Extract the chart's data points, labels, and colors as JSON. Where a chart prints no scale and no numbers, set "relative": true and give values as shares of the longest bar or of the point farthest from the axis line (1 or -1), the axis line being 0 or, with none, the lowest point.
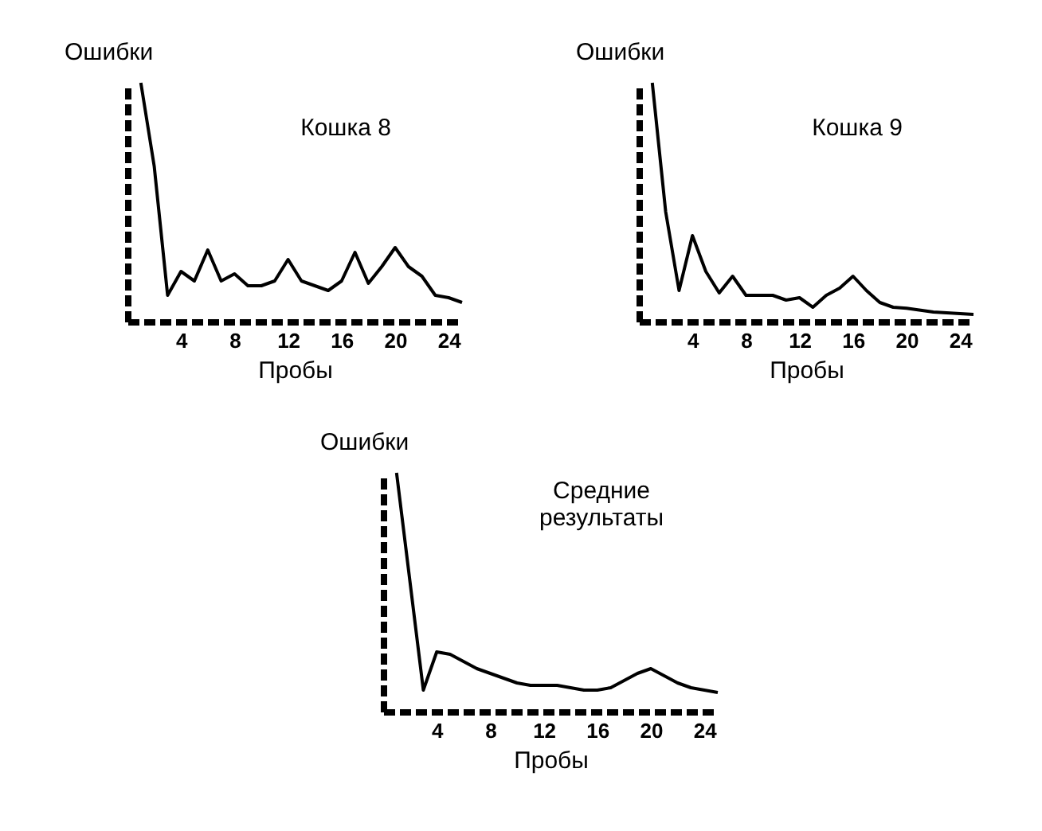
{
  "chart_data": [
    {
      "type": "line",
      "title": "Кошка 8",
      "xlabel": "Пробы",
      "ylabel": "Ошибки",
      "relative": true,
      "xlim": [
        0,
        25
      ],
      "xticks": [
        4,
        8,
        12,
        16,
        20,
        24
      ],
      "x": [
        1,
        2,
        3,
        4,
        5,
        6,
        7,
        8,
        9,
        10,
        11,
        12,
        13,
        14,
        15,
        16,
        17,
        18,
        19,
        20,
        21,
        22,
        23,
        24,
        25
      ],
      "series": [
        {
          "color": "#000000",
          "values": [
            1.0,
            0.65,
            0.11,
            0.21,
            0.17,
            0.3,
            0.17,
            0.2,
            0.15,
            0.15,
            0.17,
            0.26,
            0.17,
            0.15,
            0.13,
            0.17,
            0.29,
            0.16,
            0.23,
            0.31,
            0.23,
            0.19,
            0.11,
            0.1,
            0.08
          ]
        }
      ]
    },
    {
      "type": "line",
      "title": "Кошка 9",
      "xlabel": "Пробы",
      "ylabel": "Ошибки",
      "relative": true,
      "xlim": [
        0,
        25
      ],
      "xticks": [
        4,
        8,
        12,
        16,
        20,
        24
      ],
      "x": [
        1,
        2,
        3,
        4,
        5,
        6,
        7,
        8,
        9,
        10,
        11,
        12,
        13,
        14,
        15,
        16,
        17,
        18,
        19,
        20,
        22,
        25
      ],
      "series": [
        {
          "color": "#000000",
          "values": [
            1.0,
            0.46,
            0.13,
            0.36,
            0.21,
            0.12,
            0.19,
            0.11,
            0.11,
            0.11,
            0.09,
            0.1,
            0.06,
            0.11,
            0.14,
            0.19,
            0.13,
            0.08,
            0.06,
            0.056,
            0.04,
            0.03
          ]
        }
      ]
    },
    {
      "type": "line",
      "title": [
        "Средние",
        "результаты"
      ],
      "xlabel": "Пробы",
      "ylabel": "Ошибки",
      "relative": true,
      "xlim": [
        0,
        25
      ],
      "xticks": [
        4,
        8,
        12,
        16,
        20,
        24
      ],
      "x": [
        1,
        3,
        4,
        5,
        6,
        7,
        8,
        9,
        10,
        11,
        12,
        13,
        14,
        15,
        16,
        17,
        18,
        19,
        20,
        21,
        22,
        23,
        24,
        25
      ],
      "series": [
        {
          "color": "#000000",
          "values": [
            1.0,
            0.09,
            0.25,
            0.24,
            0.21,
            0.18,
            0.16,
            0.14,
            0.12,
            0.11,
            0.11,
            0.11,
            0.1,
            0.09,
            0.09,
            0.1,
            0.13,
            0.16,
            0.18,
            0.15,
            0.12,
            0.1,
            0.09,
            0.08
          ]
        }
      ]
    }
  ]
}
